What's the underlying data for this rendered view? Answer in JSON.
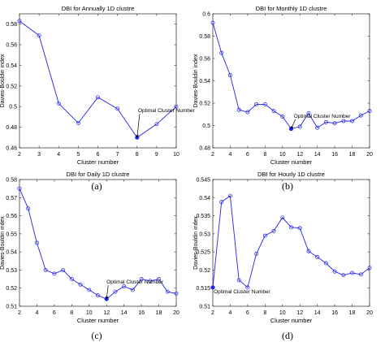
{
  "chart_data": [
    {
      "type": "line",
      "panel_label": "(a)",
      "title": "DBI for Annually 1D clustre",
      "xlabel": "Cluster number",
      "ylabel": "Davies-Bouldin index",
      "xlim": [
        2,
        10
      ],
      "ylim": [
        0.46,
        0.59
      ],
      "xticks": [
        2,
        3,
        4,
        5,
        6,
        7,
        8,
        9,
        10
      ],
      "yticks": [
        0.46,
        0.48,
        0.5,
        0.52,
        0.54,
        0.56,
        0.58
      ],
      "ytick_labels": [
        "0.46",
        "0.48",
        "0.5",
        "0.52",
        "0.54",
        "0.56",
        "0.58"
      ],
      "x": [
        2,
        3,
        4,
        5,
        6,
        7,
        8,
        9,
        10
      ],
      "y": [
        0.583,
        0.569,
        0.503,
        0.484,
        0.509,
        0.498,
        0.47,
        0.483,
        0.5
      ],
      "optimal": {
        "x": 8,
        "y": 0.47,
        "label": "Optimal Cluster Number",
        "text_x": 8.05,
        "text_y": 0.4945
      },
      "color": "#2222ee",
      "grid": false
    },
    {
      "type": "line",
      "panel_label": "(b)",
      "title": "DBI for Monthly 1D clustre",
      "xlabel": "Cluster number",
      "ylabel": "Davies-Bouldin index",
      "xlim": [
        2,
        20
      ],
      "ylim": [
        0.48,
        0.6
      ],
      "xticks": [
        2,
        4,
        6,
        8,
        10,
        12,
        14,
        16,
        18,
        20
      ],
      "yticks": [
        0.48,
        0.5,
        0.52,
        0.54,
        0.56,
        0.58,
        0.6
      ],
      "ytick_labels": [
        "0.48",
        "0.5",
        "0.52",
        "0.54",
        "0.56",
        "0.58",
        "0.6"
      ],
      "x": [
        2,
        3,
        4,
        5,
        6,
        7,
        8,
        9,
        10,
        11,
        12,
        13,
        14,
        15,
        16,
        17,
        18,
        19,
        20
      ],
      "y": [
        0.592,
        0.565,
        0.545,
        0.514,
        0.512,
        0.519,
        0.519,
        0.513,
        0.508,
        0.497,
        0.499,
        0.511,
        0.498,
        0.503,
        0.502,
        0.504,
        0.504,
        0.509,
        0.513
      ],
      "optimal": {
        "x": 11,
        "y": 0.497,
        "label": "Optimal Cluster Number",
        "text_x": 11.3,
        "text_y": 0.507
      },
      "color": "#2222ee",
      "grid": false
    },
    {
      "type": "line",
      "panel_label": "(c)",
      "title": "DBI for Daily 1D clustre",
      "xlabel": "Cluster number",
      "ylabel": "Davies-Bouldin index",
      "xlim": [
        2,
        20
      ],
      "ylim": [
        0.51,
        0.58
      ],
      "xticks": [
        2,
        4,
        6,
        8,
        10,
        12,
        14,
        16,
        18,
        20
      ],
      "yticks": [
        0.51,
        0.52,
        0.53,
        0.54,
        0.55,
        0.56,
        0.57,
        0.58
      ],
      "ytick_labels": [
        "0.51",
        "0.52",
        "0.53",
        "0.54",
        "0.55",
        "0.56",
        "0.57",
        "0.58"
      ],
      "x": [
        2,
        3,
        4,
        5,
        6,
        7,
        8,
        9,
        10,
        11,
        12,
        13,
        14,
        15,
        16,
        17,
        18,
        19,
        20
      ],
      "y": [
        0.575,
        0.564,
        0.545,
        0.53,
        0.528,
        0.53,
        0.525,
        0.522,
        0.519,
        0.516,
        0.514,
        0.518,
        0.521,
        0.519,
        0.525,
        0.524,
        0.525,
        0.518,
        0.517
      ],
      "optimal": {
        "x": 12,
        "y": 0.514,
        "label": "Optimal Cluster Number",
        "text_x": 12.0,
        "text_y": 0.5225
      },
      "color": "#2222ee",
      "grid": false
    },
    {
      "type": "line",
      "panel_label": "(d)",
      "title": "DBI for Hourly 1D clustre",
      "xlabel": "Cluster number",
      "ylabel": "Davies-Bouldin index",
      "xlim": [
        2,
        20
      ],
      "ylim": [
        0.51,
        0.545
      ],
      "xticks": [
        2,
        4,
        6,
        8,
        10,
        12,
        14,
        16,
        18,
        20
      ],
      "yticks": [
        0.51,
        0.515,
        0.52,
        0.525,
        0.53,
        0.535,
        0.54,
        0.545
      ],
      "ytick_labels": [
        "0.51",
        "0.515",
        "0.52",
        "0.525",
        "0.53",
        "0.535",
        "0.54",
        "0.545"
      ],
      "x": [
        2,
        3,
        4,
        5,
        6,
        7,
        8,
        9,
        10,
        11,
        12,
        13,
        14,
        15,
        16,
        17,
        18,
        19,
        20
      ],
      "y": [
        0.5152,
        0.5388,
        0.5405,
        0.5172,
        0.5152,
        0.5245,
        0.5295,
        0.5308,
        0.5345,
        0.5318,
        0.5316,
        0.5252,
        0.5236,
        0.5219,
        0.5196,
        0.5186,
        0.5192,
        0.5188,
        0.5206
      ],
      "optimal": {
        "x": 2,
        "y": 0.5152,
        "label": "Optimal Cluster Number",
        "text_x": 2.1,
        "text_y": 0.5136
      },
      "color": "#2222ee",
      "grid": false
    }
  ]
}
